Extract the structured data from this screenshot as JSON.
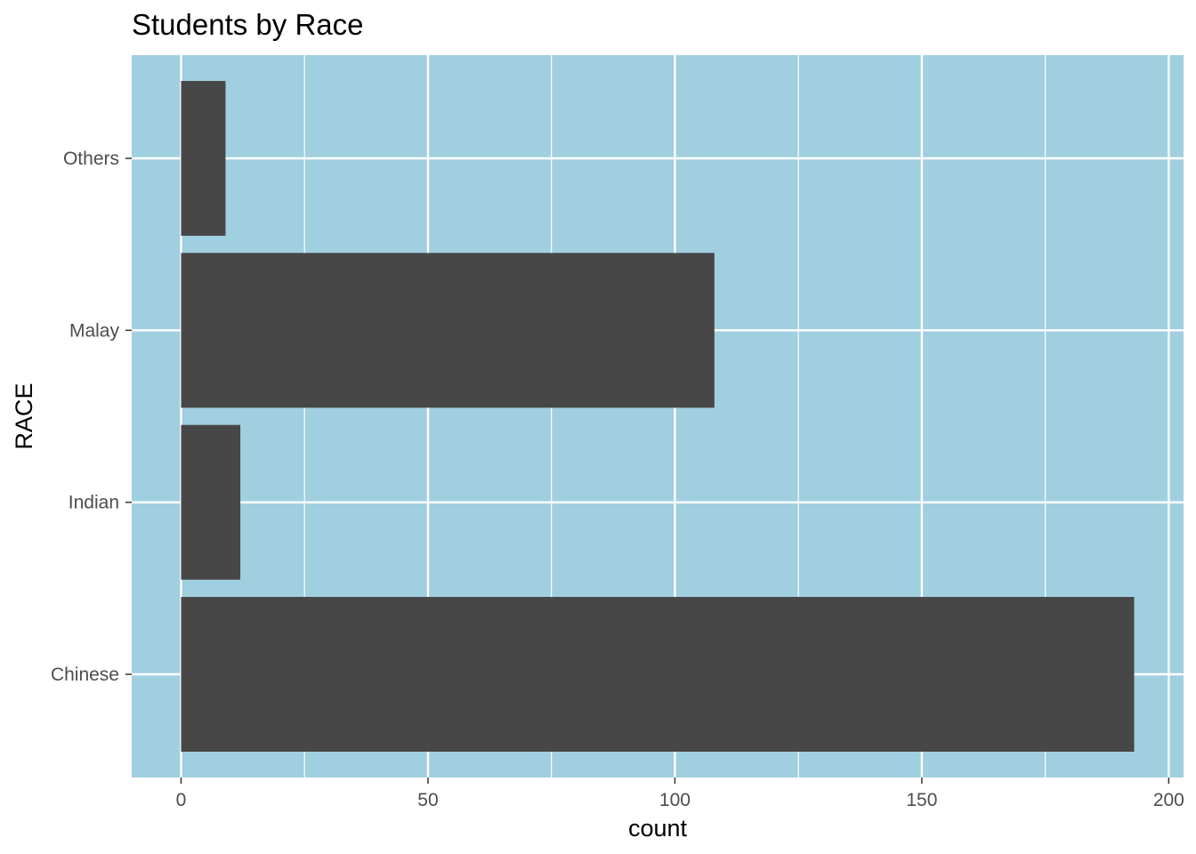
{
  "chart_data": {
    "type": "bar",
    "orientation": "horizontal",
    "title": "Students by Race",
    "xlabel": "count",
    "ylabel": "RACE",
    "categories": [
      "Chinese",
      "Indian",
      "Malay",
      "Others"
    ],
    "values": [
      193,
      12,
      108,
      9
    ],
    "xlim": [
      -10,
      203
    ],
    "xticks": [
      0,
      50,
      100,
      150,
      200
    ],
    "xtick_labels": [
      "0",
      "50",
      "100",
      "150",
      "200"
    ],
    "grid": true,
    "legend": "none",
    "colors": {
      "panel_background": "#a0cfe0",
      "bar_fill": "#474747",
      "grid_line": "#ffffff",
      "tick_text": "#4d4d4d"
    }
  }
}
